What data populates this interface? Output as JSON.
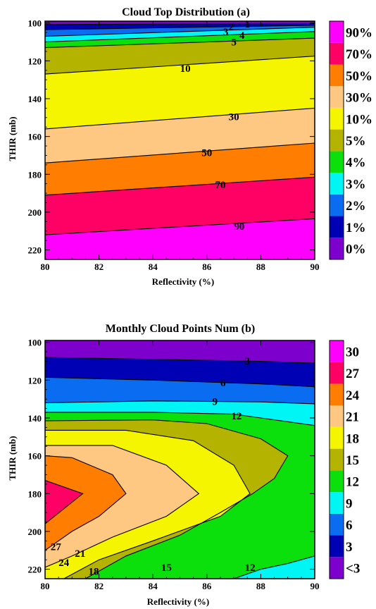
{
  "colors": {
    "lv0": "#7d00cc",
    "lv1": "#0000b4",
    "lv2": "#0a6cf0",
    "lv3": "#00f5f5",
    "lv4": "#0ce00c",
    "lv5": "#b4b400",
    "lv6": "#f5f500",
    "lv7": "#ffc882",
    "lv8": "#ff7d00",
    "lv9": "#ff0064",
    "lv10": "#ff00ff"
  },
  "chart_data": [
    {
      "type": "contour",
      "title": "Cloud Top Distribution (a)",
      "xlabel": "Reflectivity (%)",
      "ylabel": "THIR (mb)",
      "xlim": [
        80,
        90
      ],
      "ylim": [
        225,
        99
      ],
      "xticks": [
        "80",
        "82",
        "84",
        "86",
        "88",
        "90"
      ],
      "yticks": [
        "100",
        "120",
        "140",
        "160",
        "180",
        "200",
        "220"
      ],
      "colorbar_labels": [
        "0%",
        "1%",
        "2%",
        "3%",
        "4%",
        "5%",
        "10%",
        "30%",
        "50%",
        "70%",
        "90%"
      ],
      "contours": [
        {
          "level": "1",
          "points": [
            [
              80,
              100.8
            ],
            [
              90,
              100.3
            ]
          ]
        },
        {
          "level": "2",
          "points": [
            [
              80,
              103.5
            ],
            [
              90,
              101.2
            ]
          ]
        },
        {
          "level": "3",
          "points": [
            [
              80,
              107
            ],
            [
              90,
              102.2
            ]
          ]
        },
        {
          "level": "4",
          "points": [
            [
              80,
              110
            ],
            [
              90,
              104.5
            ]
          ]
        },
        {
          "level": "5",
          "points": [
            [
              80,
              113
            ],
            [
              90,
              108
            ]
          ]
        },
        {
          "level": "10",
          "points": [
            [
              80,
              127
            ],
            [
              90,
              117.5
            ]
          ]
        },
        {
          "level": "30",
          "points": [
            [
              80,
              156
            ],
            [
              90,
              145
            ]
          ]
        },
        {
          "level": "50",
          "points": [
            [
              80,
              174
            ],
            [
              90,
              163.5
            ]
          ]
        },
        {
          "level": "70",
          "points": [
            [
              80,
              191
            ],
            [
              90,
              181.5
            ]
          ]
        },
        {
          "level": "90",
          "points": [
            [
              80,
              212
            ],
            [
              90,
              203.5
            ]
          ]
        }
      ],
      "contour_labels": [
        {
          "text": "1",
          "x": 87.5,
          "y": 100.5
        },
        {
          "text": "3",
          "x": 86.7,
          "y": 104.5
        },
        {
          "text": "2",
          "x": 86.9,
          "y": 102
        },
        {
          "text": "4",
          "x": 87.3,
          "y": 106.5
        },
        {
          "text": "5",
          "x": 87.0,
          "y": 110
        },
        {
          "text": "10",
          "x": 85.2,
          "y": 124
        },
        {
          "text": "30",
          "x": 87.0,
          "y": 149.5
        },
        {
          "text": "50",
          "x": 86.0,
          "y": 168.5
        },
        {
          "text": "70",
          "x": 86.5,
          "y": 185.5
        },
        {
          "text": "90",
          "x": 87.2,
          "y": 207.5
        }
      ]
    },
    {
      "type": "contour",
      "title": "Monthly Cloud Points Num (b)",
      "xlabel": "Reflectivity (%)",
      "ylabel": "THIR (mb)",
      "xlim": [
        80,
        90
      ],
      "ylim": [
        225,
        99
      ],
      "xticks": [
        "80",
        "82",
        "84",
        "86",
        "88",
        "90"
      ],
      "yticks": [
        "100",
        "120",
        "140",
        "160",
        "180",
        "200",
        "220"
      ],
      "colorbar_labels": [
        "<3",
        "3",
        "6",
        "9",
        "12",
        "15",
        "18",
        "21",
        "24",
        "27",
        "30"
      ],
      "contours": [
        {
          "level": "3",
          "points": [
            [
              80,
              108
            ],
            [
              84,
              109
            ],
            [
              88,
              110
            ],
            [
              90,
              111
            ]
          ]
        },
        {
          "level": "6",
          "points": [
            [
              80,
              118.5
            ],
            [
              84,
              120
            ],
            [
              88,
              122
            ],
            [
              90,
              123.5
            ]
          ]
        },
        {
          "level": "9",
          "points": [
            [
              80,
              132
            ],
            [
              84,
              131
            ],
            [
              88,
              131.5
            ],
            [
              90,
              132.5
            ]
          ]
        },
        {
          "level": "12",
          "points": [
            [
              80,
              137
            ],
            [
              84,
              137
            ],
            [
              87,
              138
            ],
            [
              88.5,
              141
            ],
            [
              90,
              144
            ],
            [
              90,
              213
            ],
            [
              89,
              217
            ],
            [
              88,
              220
            ],
            [
              87,
              225
            ]
          ]
        },
        {
          "level": "15",
          "points": [
            [
              80,
              141.5
            ],
            [
              84,
              141
            ],
            [
              86,
              143
            ],
            [
              88,
              151
            ],
            [
              89,
              160
            ],
            [
              88.5,
              172
            ],
            [
              87.7,
              180
            ],
            [
              86.5,
              190
            ],
            [
              85,
              202
            ],
            [
              83,
              213
            ],
            [
              81.5,
              225
            ]
          ]
        },
        {
          "level": "18",
          "points": [
            [
              80,
              146.5
            ],
            [
              83,
              146.5
            ],
            [
              85.5,
              152
            ],
            [
              87,
              165
            ],
            [
              87.6,
              180
            ],
            [
              86.5,
              192
            ],
            [
              84,
              205
            ],
            [
              82,
              215
            ],
            [
              80.7,
              225
            ]
          ]
        },
        {
          "level": "21",
          "points": [
            [
              80,
              154.5
            ],
            [
              82.5,
              154.5
            ],
            [
              84.5,
              165
            ],
            [
              85.7,
              180
            ],
            [
              84.5,
              192
            ],
            [
              82.5,
              203
            ],
            [
              81,
              213
            ],
            [
              80,
              219
            ]
          ]
        },
        {
          "level": "24",
          "points": [
            [
              80,
              160
            ],
            [
              81,
              161
            ],
            [
              82.5,
              170
            ],
            [
              83,
              180
            ],
            [
              82,
              192
            ],
            [
              81,
              200
            ],
            [
              80,
              210
            ]
          ]
        },
        {
          "level": "27",
          "points": [
            [
              80,
              173
            ],
            [
              81.4,
              180
            ],
            [
              80,
              196
            ]
          ]
        }
      ],
      "contour_labels": [
        {
          "text": "3",
          "x": 87.5,
          "y": 109.8
        },
        {
          "text": "6",
          "x": 86.6,
          "y": 121.3
        },
        {
          "text": "9",
          "x": 86.3,
          "y": 131.3
        },
        {
          "text": "12",
          "x": 87.1,
          "y": 138.8
        },
        {
          "text": "27",
          "x": 80.4,
          "y": 208
        },
        {
          "text": "24",
          "x": 80.7,
          "y": 216.5
        },
        {
          "text": "21",
          "x": 81.3,
          "y": 211.5
        },
        {
          "text": "18",
          "x": 81.8,
          "y": 221
        },
        {
          "text": "15",
          "x": 84.5,
          "y": 219
        },
        {
          "text": "12",
          "x": 87.6,
          "y": 219
        }
      ]
    }
  ]
}
